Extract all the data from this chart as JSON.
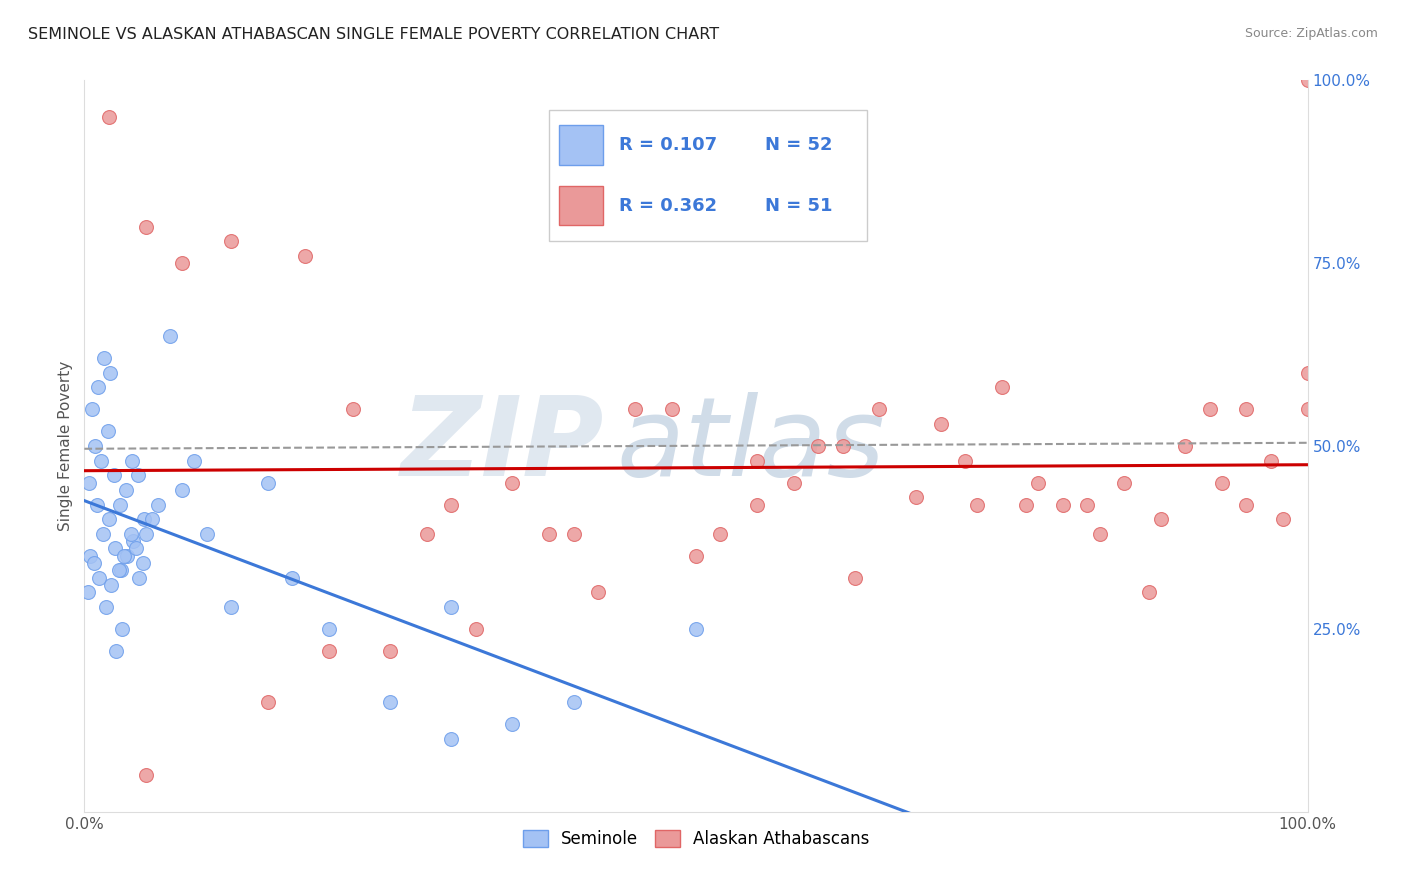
{
  "title": "SEMINOLE VS ALASKAN ATHABASCAN SINGLE FEMALE POVERTY CORRELATION CHART",
  "source": "Source: ZipAtlas.com",
  "ylabel": "Single Female Poverty",
  "legend_labels": [
    "Seminole",
    "Alaskan Athabascans"
  ],
  "seminole_R": "0.107",
  "seminole_N": "52",
  "athabascan_R": "0.362",
  "athabascan_N": "51",
  "blue_scatter_color": "#a4c2f4",
  "blue_scatter_edge": "#6d9eeb",
  "pink_scatter_color": "#ea9999",
  "pink_scatter_edge": "#e06666",
  "blue_line_color": "#3c78d8",
  "pink_line_color": "#cc0000",
  "dash_line_color": "#999999",
  "label_color": "#3c78d8",
  "right_tick_color": "#3c78d8",
  "grid_color": "#dddddd",
  "background": "#ffffff",
  "watermark_zip_color": "#e0e8f0",
  "watermark_atlas_color": "#d0dce8",
  "seminole_x": [
    0.5,
    1.0,
    1.5,
    2.0,
    2.5,
    3.0,
    3.5,
    4.0,
    4.5,
    5.0,
    0.3,
    0.8,
    1.2,
    1.8,
    2.2,
    2.8,
    3.2,
    3.8,
    4.2,
    4.8,
    0.4,
    0.9,
    1.4,
    1.9,
    2.4,
    2.9,
    3.4,
    3.9,
    4.4,
    4.9,
    0.6,
    1.1,
    1.6,
    2.1,
    2.6,
    3.1,
    5.5,
    6.0,
    7.0,
    8.0,
    9.0,
    10.0,
    12.0,
    15.0,
    17.0,
    20.0,
    25.0,
    30.0,
    35.0,
    40.0,
    50.0,
    30.0
  ],
  "seminole_y": [
    35.0,
    42.0,
    38.0,
    40.0,
    36.0,
    33.0,
    35.0,
    37.0,
    32.0,
    38.0,
    30.0,
    34.0,
    32.0,
    28.0,
    31.0,
    33.0,
    35.0,
    38.0,
    36.0,
    34.0,
    45.0,
    50.0,
    48.0,
    52.0,
    46.0,
    42.0,
    44.0,
    48.0,
    46.0,
    40.0,
    55.0,
    58.0,
    62.0,
    60.0,
    22.0,
    25.0,
    40.0,
    42.0,
    65.0,
    44.0,
    48.0,
    38.0,
    28.0,
    45.0,
    32.0,
    25.0,
    15.0,
    28.0,
    12.0,
    15.0,
    25.0,
    10.0
  ],
  "athabascan_x": [
    2.0,
    5.0,
    8.0,
    12.0,
    18.0,
    22.0,
    28.0,
    35.0,
    40.0,
    45.0,
    50.0,
    55.0,
    60.0,
    65.0,
    70.0,
    75.0,
    80.0,
    85.0,
    90.0,
    95.0,
    100.0,
    30.0,
    38.0,
    48.0,
    55.0,
    62.0,
    68.0,
    72.0,
    78.0,
    82.0,
    88.0,
    92.0,
    97.0,
    100.0,
    25.0,
    42.0,
    58.0,
    73.0,
    83.0,
    93.0,
    15.0,
    20.0,
    32.0,
    52.0,
    63.0,
    77.0,
    87.0,
    95.0,
    98.0,
    100.0,
    5.0
  ],
  "athabascan_y": [
    95.0,
    80.0,
    75.0,
    78.0,
    76.0,
    55.0,
    38.0,
    45.0,
    38.0,
    55.0,
    35.0,
    48.0,
    50.0,
    55.0,
    53.0,
    58.0,
    42.0,
    45.0,
    50.0,
    55.0,
    100.0,
    42.0,
    38.0,
    55.0,
    42.0,
    50.0,
    43.0,
    48.0,
    45.0,
    42.0,
    40.0,
    55.0,
    48.0,
    60.0,
    22.0,
    30.0,
    45.0,
    42.0,
    38.0,
    45.0,
    15.0,
    22.0,
    25.0,
    38.0,
    32.0,
    42.0,
    30.0,
    42.0,
    40.0,
    55.0,
    5.0
  ],
  "xlim": [
    0,
    100
  ],
  "ylim": [
    0,
    100
  ]
}
